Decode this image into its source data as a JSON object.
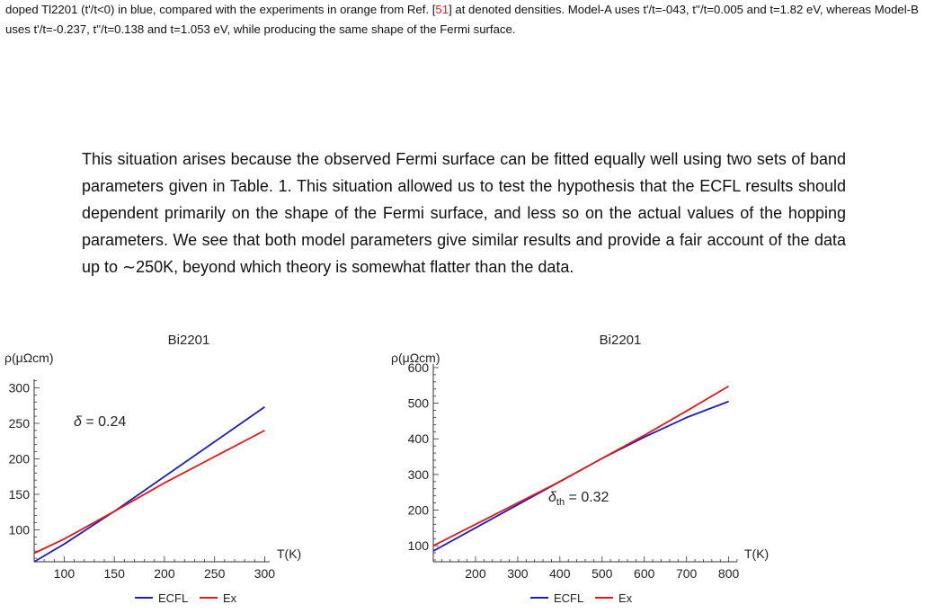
{
  "caption": {
    "part1": "doped Tl2201 (t'/t<0) in blue, compared with the experiments in orange from Ref. [",
    "ref": "51",
    "part2": "] at denoted densities. Model-A uses t'/t=-043, t''/t=0.005 and t=1.82 eV, whereas Model-B uses t'/t=-0.237, t''/t=0.138 and t=1.053 eV, while producing the same shape of the Fermi surface."
  },
  "paragraph": "This situation arises because the observed Fermi surface can be fitted equally well using two sets of band parameters given in Table. 1. This situation allowed us to test the hypothesis that the ECFL results should dependent primarily on the shape of the Fermi surface, and less so on the actual values of the hopping parameters. We see that both model parameters give similar results and provide a fair account of the data up to ∼250K, beyond which theory is somewhat flatter than the data.",
  "colors": {
    "ecfl": "#1f1fb8",
    "ex": "#e01a1a",
    "axis": "#333333"
  },
  "chart_data": [
    {
      "type": "line",
      "title": "Bi2201",
      "ylabel": "ρ(μΩcm)",
      "xlabel": "T(K)",
      "annotation": {
        "symbol": "δ",
        "sub": "",
        "value": " = 0.24"
      },
      "xlim": [
        70,
        305
      ],
      "ylim": [
        55,
        312
      ],
      "xticks": [
        100,
        150,
        200,
        250,
        300
      ],
      "yticks": [
        100,
        150,
        200,
        250,
        300
      ],
      "series": [
        {
          "name": "ECFL",
          "x": [
            70,
            100,
            150,
            200,
            250,
            300
          ],
          "y": [
            55,
            80,
            126,
            175,
            224,
            273
          ],
          "smooth": true
        },
        {
          "name": "Ex",
          "x": [
            70,
            100,
            150,
            200,
            250,
            300
          ],
          "y": [
            67,
            87,
            126,
            166,
            203,
            240
          ]
        }
      ],
      "legend": [
        "ECFL",
        "Ex"
      ]
    },
    {
      "type": "line",
      "title": "Bi2201",
      "ylabel": "ρ(μΩcm)",
      "xlabel": "T(K)",
      "annotation": {
        "symbol": "δ",
        "sub": "th",
        "value": " = 0.32"
      },
      "xlim": [
        100,
        820
      ],
      "ylim": [
        55,
        610
      ],
      "xticks": [
        200,
        300,
        400,
        500,
        600,
        700,
        800
      ],
      "yticks": [
        100,
        200,
        300,
        400,
        500,
        600
      ],
      "series": [
        {
          "name": "ECFL",
          "x": [
            100,
            200,
            300,
            400,
            500,
            600,
            700,
            800
          ],
          "y": [
            85,
            150,
            215,
            280,
            345,
            405,
            460,
            505
          ]
        },
        {
          "name": "Ex",
          "x": [
            100,
            200,
            300,
            400,
            500,
            600,
            700,
            800
          ],
          "y": [
            100,
            160,
            220,
            280,
            345,
            410,
            478,
            548
          ]
        }
      ],
      "legend": [
        "ECFL",
        "Ex"
      ]
    }
  ]
}
